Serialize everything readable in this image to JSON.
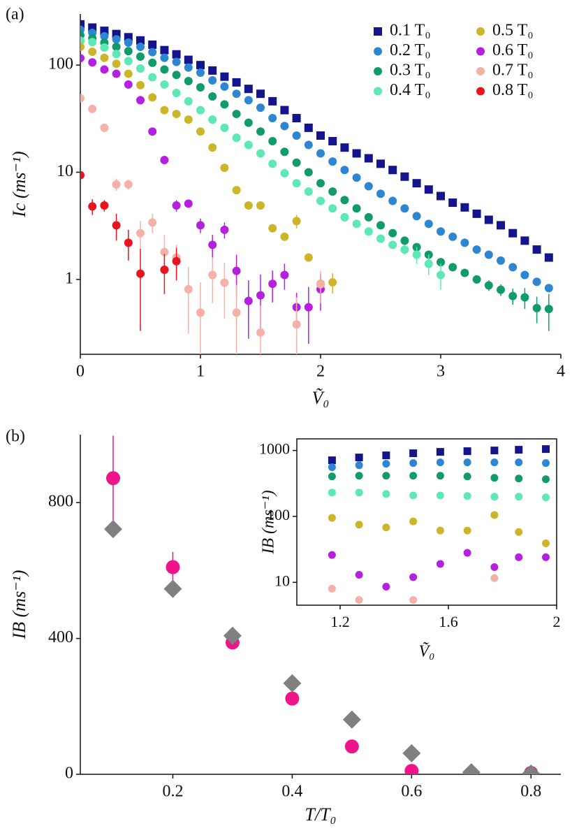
{
  "chart_data": [
    {
      "type": "scatter",
      "panel_label": "(a)",
      "ylabel": "Ic (ms⁻¹)",
      "xlabel": "Ṽ₀",
      "ylog": true,
      "xlim": [
        0,
        4
      ],
      "ylim": [
        0.2,
        300
      ],
      "xticks": [
        0,
        1,
        2,
        3,
        4
      ],
      "yticks": [
        1,
        10,
        100
      ],
      "legend": "upper right",
      "frame": "spines",
      "x": [
        0,
        0.1,
        0.2,
        0.3,
        0.4,
        0.5,
        0.6,
        0.7,
        0.8,
        0.9,
        1,
        1.1,
        1.2,
        1.3,
        1.4,
        1.5,
        1.6,
        1.7,
        1.8,
        1.9,
        2,
        2.1,
        2.2,
        2.3,
        2.4,
        2.5,
        2.6,
        2.7,
        2.8,
        2.9,
        3,
        3.1,
        3.2,
        3.3,
        3.4,
        3.5,
        3.6,
        3.7,
        3.8,
        3.9
      ],
      "series": [
        {
          "name": "0.1 T₀",
          "color": "#14148c",
          "marker": "square",
          "values": [
            240,
            224,
            209,
            195,
            182,
            170,
            155,
            138,
            126,
            112,
            100,
            89,
            78,
            69,
            60,
            54,
            46,
            38,
            32,
            26,
            22,
            19.5,
            17,
            15,
            13.5,
            12,
            10.5,
            9.1,
            7.9,
            6.9,
            6,
            5.2,
            4.7,
            4.1,
            3.6,
            3.2,
            2.7,
            2.3,
            1.9,
            1.6
          ]
        },
        {
          "name": "0.2 T₀",
          "color": "#2c86d2",
          "marker": "circle",
          "values": [
            214,
            200,
            186,
            174,
            162,
            148,
            132,
            117,
            107,
            95,
            85,
            72,
            63,
            54,
            47,
            40,
            32,
            27,
            22,
            18,
            15,
            12.6,
            10.5,
            8.9,
            7.4,
            6.3,
            5.4,
            4.6,
            3.9,
            3.3,
            2.8,
            2.5,
            2.2,
            1.9,
            1.7,
            1.5,
            1.3,
            1.1,
            0.95,
            0.83
          ]
        },
        {
          "name": "0.3 T₀",
          "color": "#119b6d",
          "marker": "circle",
          "values": [
            190,
            178,
            162,
            148,
            135,
            120,
            105,
            91,
            81,
            71,
            62,
            51,
            43,
            35,
            29,
            24,
            19.5,
            15.5,
            12.3,
            10,
            7.9,
            6.6,
            5.5,
            4.6,
            3.8,
            3.2,
            2.7,
            2.3,
            2,
            1.7,
            1.45,
            1.3,
            1.15,
            1,
            0.88,
            0.8,
            0.7,
            0.68,
            0.54,
            0.53
          ],
          "errors": [
            null,
            null,
            null,
            null,
            null,
            null,
            null,
            null,
            null,
            null,
            null,
            null,
            null,
            null,
            null,
            null,
            null,
            null,
            null,
            null,
            null,
            null,
            null,
            null,
            null,
            null,
            null,
            null,
            null,
            null,
            null,
            null,
            null,
            null,
            0.1,
            0.1,
            0.12,
            0.15,
            0.15,
            0.2
          ]
        },
        {
          "name": "0.4 T₀",
          "color": "#5de8b4",
          "marker": "circle",
          "values": [
            169,
            164,
            146,
            127,
            109,
            93,
            77,
            66,
            55,
            46,
            38,
            31,
            26,
            21,
            18,
            15,
            12,
            9.8,
            7.9,
            6.6,
            5.4,
            4.6,
            3.8,
            3.3,
            2.8,
            2.4,
            2.1,
            1.9,
            1.7,
            1.4,
            1.1,
            null,
            null,
            null,
            null,
            null,
            null,
            null,
            null,
            null
          ],
          "errors": [
            null,
            null,
            null,
            null,
            null,
            null,
            null,
            null,
            null,
            null,
            null,
            null,
            null,
            null,
            null,
            null,
            null,
            null,
            null,
            null,
            null,
            null,
            null,
            null,
            null,
            0.2,
            null,
            0.2,
            0.3,
            0.3,
            0.3,
            null,
            null,
            null,
            null,
            null,
            null,
            null,
            null,
            null
          ]
        },
        {
          "name": "0.5 T₀",
          "color": "#cdb52a",
          "marker": "circle",
          "values": [
            148,
            133,
            117,
            103,
            83,
            65,
            50,
            38,
            35,
            31,
            24,
            17,
            11,
            6.8,
            4.9,
            4.9,
            3,
            2.5,
            3.5,
            1.6,
            0.91,
            0.94,
            null,
            null,
            null,
            null,
            null,
            null,
            null,
            null,
            null,
            null,
            null,
            null,
            null,
            null,
            null,
            null,
            null,
            null
          ],
          "errors": [
            null,
            null,
            null,
            null,
            null,
            null,
            null,
            null,
            null,
            null,
            null,
            null,
            null,
            null,
            null,
            null,
            null,
            null,
            0.5,
            null,
            0.2,
            0.2,
            null,
            null,
            null,
            null,
            null,
            null,
            null,
            null,
            null,
            null,
            null,
            null,
            null,
            null,
            null,
            null,
            null,
            null
          ]
        },
        {
          "name": "0.6 T₀",
          "color": "#b520e0",
          "marker": "circle",
          "values": [
            116,
            106,
            91,
            83,
            66,
            47,
            24,
            13,
            4.9,
            5.1,
            3.2,
            2.1,
            2.9,
            1.2,
            0.63,
            0.71,
            0.91,
            1.1,
            0.55,
            0.55,
            0.81,
            null,
            null,
            null,
            null,
            null,
            null,
            null,
            null,
            null,
            null,
            null,
            null,
            null,
            null,
            null,
            null,
            null,
            null,
            null
          ],
          "errors": [
            null,
            null,
            null,
            null,
            null,
            null,
            null,
            null,
            0.6,
            null,
            0.5,
            0.5,
            0.5,
            0.5,
            0.35,
            0.4,
            0.3,
            0.3,
            0.2,
            0.3,
            0.3,
            null,
            null,
            null,
            null,
            null,
            null,
            null,
            null,
            null,
            null,
            null,
            null,
            null,
            null,
            null,
            null,
            null,
            null,
            null
          ]
        },
        {
          "name": "0.7 T₀",
          "color": "#f5b1a8",
          "marker": "circle",
          "values": [
            49,
            39,
            26,
            7.7,
            7.7,
            2.7,
            3.4,
            1.8,
            1.6,
            0.81,
            0.49,
            1.1,
            0.93,
            0.49,
            null,
            0.32,
            null,
            null,
            0.38,
            null,
            0.9,
            null,
            null,
            null,
            null,
            null,
            null,
            null,
            null,
            null,
            null,
            null,
            null,
            null,
            null,
            null,
            null,
            null,
            null,
            null
          ],
          "errors": [
            null,
            null,
            null,
            1,
            0.8,
            0.8,
            0.7,
            0.8,
            0.5,
            0.5,
            0.45,
            0.5,
            0.5,
            0.4,
            null,
            0.25,
            null,
            null,
            0.3,
            null,
            0.3,
            null,
            null,
            null,
            null,
            null,
            null,
            null,
            null,
            null,
            null,
            null,
            null,
            null,
            null,
            null,
            null,
            null,
            null,
            null
          ]
        },
        {
          "name": "0.8 T₀",
          "color": "#e6151e",
          "marker": "circle",
          "values": [
            9.4,
            4.8,
            4.9,
            3.2,
            2.2,
            1.13,
            null,
            1.23,
            1.48,
            null,
            null,
            null,
            null,
            null,
            null,
            null,
            null,
            null,
            null,
            null,
            null,
            null,
            null,
            null,
            null,
            null,
            null,
            null,
            null,
            null,
            null,
            null,
            null,
            null,
            null,
            null,
            null,
            null,
            null,
            null
          ],
          "errors": [
            null,
            0.8,
            0.6,
            0.9,
            0.7,
            0.8,
            null,
            0.5,
            0.5,
            null,
            null,
            null,
            null,
            null,
            null,
            null,
            null,
            null,
            null,
            null,
            null,
            null,
            null,
            null,
            null,
            null,
            null,
            null,
            null,
            null,
            null,
            null,
            null,
            null,
            null,
            null,
            null,
            null,
            null,
            null
          ]
        }
      ]
    },
    {
      "type": "scatter",
      "panel_label": "(b)",
      "ylabel": "IB (ms⁻¹)",
      "xlabel": "T/T₀",
      "ylog": false,
      "xlim": [
        0.045,
        0.85
      ],
      "ylim": [
        0,
        1000
      ],
      "xticks": [
        0.2,
        0.4,
        0.6,
        0.8
      ],
      "yticks": [
        0,
        400,
        800
      ],
      "frame": "spines",
      "x": [
        0.1,
        0.2,
        0.3,
        0.4,
        0.5,
        0.6,
        0.7,
        0.8
      ],
      "series": [
        {
          "color": "#f0148c",
          "marker": "circle",
          "values": [
            872,
            610,
            388,
            223,
            82,
            10,
            2,
            4
          ],
          "errors": [
            125,
            45,
            null,
            null,
            null,
            null,
            null,
            null
          ]
        },
        {
          "color": "#808080",
          "marker": "diamond",
          "values": [
            722,
            546,
            408,
            268,
            161,
            62,
            6,
            2
          ]
        }
      ]
    },
    {
      "type": "scatter",
      "ylabel": "IB (ms⁻¹)",
      "xlabel": "Ṽ₀",
      "ylog": true,
      "xlim": [
        1.04,
        2
      ],
      "ylim": [
        4.5,
        1500
      ],
      "xticks": [
        1.2,
        1.6,
        2
      ],
      "yticks": [
        10,
        100,
        1000
      ],
      "frame": "box",
      "x": [
        1.17,
        1.27,
        1.37,
        1.47,
        1.57,
        1.67,
        1.77,
        1.86,
        1.96
      ],
      "series": [
        {
          "color": "#14148c",
          "marker": "square",
          "values": [
            710,
            783,
            843,
            907,
            952,
            976,
            1000,
            1025,
            1050
          ]
        },
        {
          "color": "#2c86d2",
          "marker": "circle",
          "values": [
            556,
            598,
            628,
            644,
            660,
            660,
            660,
            660,
            644
          ]
        },
        {
          "color": "#119b6d",
          "marker": "circle",
          "values": [
            404,
            414,
            414,
            414,
            414,
            404,
            385,
            375,
            366
          ]
        },
        {
          "color": "#5de8b4",
          "marker": "circle",
          "values": [
            230,
            230,
            219,
            208,
            208,
            204,
            199,
            199,
            194
          ]
        },
        {
          "color": "#cdb52a",
          "marker": "circle",
          "values": [
            95,
            75,
            68,
            84,
            61,
            61,
            105,
            58,
            39
          ]
        },
        {
          "color": "#b520e0",
          "marker": "circle",
          "values": [
            26,
            13,
            8.6,
            12,
            19,
            28,
            17,
            24,
            24
          ]
        },
        {
          "color": "#f5b1a8",
          "marker": "circle",
          "values": [
            8,
            5.4,
            null,
            5.4,
            null,
            null,
            11.6,
            null,
            null
          ]
        }
      ]
    }
  ]
}
